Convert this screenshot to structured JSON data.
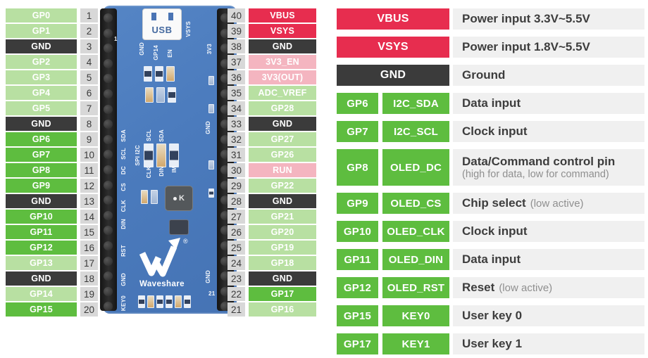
{
  "colors": {
    "gpio_highlight": "#5ebd3f",
    "gpio_normal": "#b8e0a2",
    "ground": "#3b3b3b",
    "power": "#e72d4f",
    "power_alt": "#f4b5c0",
    "pin_number_bg": "#d8d8d8",
    "description_bg": "#f0f0f0",
    "pcb_blue": "#4b7bbd"
  },
  "left_pins": [
    {
      "num": "1",
      "label": "GP0",
      "type": "light"
    },
    {
      "num": "2",
      "label": "GP1",
      "type": "light"
    },
    {
      "num": "3",
      "label": "GND",
      "type": "dark"
    },
    {
      "num": "4",
      "label": "GP2",
      "type": "light"
    },
    {
      "num": "5",
      "label": "GP3",
      "type": "light"
    },
    {
      "num": "6",
      "label": "GP4",
      "type": "light"
    },
    {
      "num": "7",
      "label": "GP5",
      "type": "light"
    },
    {
      "num": "8",
      "label": "GND",
      "type": "dark"
    },
    {
      "num": "9",
      "label": "GP6",
      "type": "bright"
    },
    {
      "num": "10",
      "label": "GP7",
      "type": "bright"
    },
    {
      "num": "11",
      "label": "GP8",
      "type": "bright"
    },
    {
      "num": "12",
      "label": "GP9",
      "type": "bright"
    },
    {
      "num": "13",
      "label": "GND",
      "type": "dark"
    },
    {
      "num": "14",
      "label": "GP10",
      "type": "bright"
    },
    {
      "num": "15",
      "label": "GP11",
      "type": "bright"
    },
    {
      "num": "16",
      "label": "GP12",
      "type": "bright"
    },
    {
      "num": "17",
      "label": "GP13",
      "type": "light"
    },
    {
      "num": "18",
      "label": "GND",
      "type": "dark"
    },
    {
      "num": "19",
      "label": "GP14",
      "type": "light"
    },
    {
      "num": "20",
      "label": "GP15",
      "type": "bright"
    }
  ],
  "right_pins": [
    {
      "num": "40",
      "label": "VBUS",
      "type": "red"
    },
    {
      "num": "39",
      "label": "VSYS",
      "type": "red"
    },
    {
      "num": "38",
      "label": "GND",
      "type": "dark"
    },
    {
      "num": "37",
      "label": "3V3_EN",
      "type": "pink"
    },
    {
      "num": "36",
      "label": "3V3(OUT)",
      "type": "pink"
    },
    {
      "num": "35",
      "label": "ADC_VREF",
      "type": "light"
    },
    {
      "num": "34",
      "label": "GP28",
      "type": "light"
    },
    {
      "num": "33",
      "label": "GND",
      "type": "dark"
    },
    {
      "num": "32",
      "label": "GP27",
      "type": "light"
    },
    {
      "num": "31",
      "label": "GP26",
      "type": "light"
    },
    {
      "num": "30",
      "label": "RUN",
      "type": "pink"
    },
    {
      "num": "29",
      "label": "GP22",
      "type": "light"
    },
    {
      "num": "28",
      "label": "GND",
      "type": "dark"
    },
    {
      "num": "27",
      "label": "GP21",
      "type": "light"
    },
    {
      "num": "26",
      "label": "GP20",
      "type": "light"
    },
    {
      "num": "25",
      "label": "GP19",
      "type": "light"
    },
    {
      "num": "24",
      "label": "GP18",
      "type": "light"
    },
    {
      "num": "23",
      "label": "GND",
      "type": "dark"
    },
    {
      "num": "22",
      "label": "GP17",
      "type": "bright"
    },
    {
      "num": "21",
      "label": "GP16",
      "type": "light"
    }
  ],
  "legend_rows": [
    {
      "cells": [
        "VBUS"
      ],
      "type": "red",
      "desc": "Power input 3.3V~5.5V"
    },
    {
      "cells": [
        "VSYS"
      ],
      "type": "red",
      "desc": "Power input 1.8V~5.5V"
    },
    {
      "cells": [
        "GND"
      ],
      "type": "dark",
      "desc": "Ground"
    },
    {
      "cells": [
        "GP6",
        "I2C_SDA"
      ],
      "type": "bright",
      "desc": "Data input"
    },
    {
      "cells": [
        "GP7",
        "I2C_SCL"
      ],
      "type": "bright",
      "desc": "Clock input"
    },
    {
      "cells": [
        "GP8",
        "OLED_DC"
      ],
      "type": "bright",
      "desc": "Data/Command control pin",
      "note": "(high for data, low for command)",
      "note_newline": true,
      "tall": true
    },
    {
      "cells": [
        "GP9",
        "OLED_CS"
      ],
      "type": "bright",
      "desc": "Chip select",
      "note": "(low active)"
    },
    {
      "cells": [
        "GP10",
        "OLED_CLK"
      ],
      "type": "bright",
      "desc": "Clock input"
    },
    {
      "cells": [
        "GP11",
        "OLED_DIN"
      ],
      "type": "bright",
      "desc": "Data input"
    },
    {
      "cells": [
        "GP12",
        "OLED_RST"
      ],
      "type": "bright",
      "desc": "Reset",
      "note": "(low active)"
    },
    {
      "cells": [
        "GP15",
        "KEY0"
      ],
      "type": "bright",
      "desc": "User key 0"
    },
    {
      "cells": [
        "GP17",
        "KEY1"
      ],
      "type": "bright",
      "desc": "User key 1"
    }
  ],
  "board": {
    "usb_label": "USB",
    "brand": "Waveshare",
    "reg_mark": "®",
    "chip_label": "K",
    "silk_top": [
      "1",
      "GND",
      "GP14",
      "EN",
      "VSYS",
      "3V3"
    ],
    "silk_left": [
      "SDA",
      "SCL",
      "DC",
      "CS",
      "CLK",
      "DIN",
      "RST",
      "GND",
      "KEY0"
    ],
    "silk_mid": [
      "SCL",
      "SDA",
      "SPI I2C",
      "CLK",
      "DIN",
      "IM"
    ],
    "silk_right": [
      "GND",
      "GND",
      "21"
    ]
  }
}
